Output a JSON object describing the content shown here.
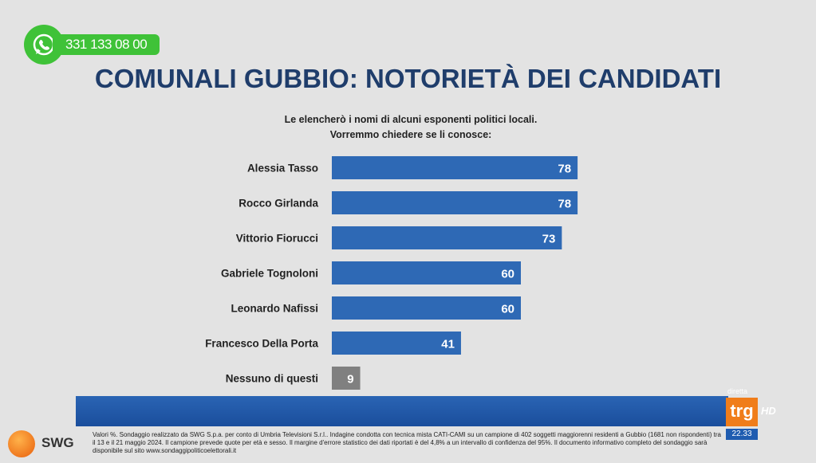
{
  "overlay": {
    "whatsapp_number": "331 133 08 00",
    "whatsapp_color": "#3fc238",
    "channel_live": "diretta",
    "channel_logo": "trg",
    "channel_hd": "HD",
    "clock": "22.33",
    "pollster_logo": "SWG"
  },
  "title": "COMUNALI GUBBIO: NOTORIETÀ DEI CANDIDATI",
  "question_line1": "Le elencherò i nomi di alcuni esponenti politici locali.",
  "question_line2": "Vorremmo chiedere se li conosce:",
  "footnote": "Valori %. Sondaggio realizzato da SWG S.p.a. per conto di Umbria Televisioni S.r.l.. Indagine condotta con tecnica mista CATI-CAMI su un campione di 402 soggetti maggiorenni residenti a Gubbio (1681 non rispondenti) tra il 13 e il 21 maggio 2024. Il campione prevede quote per età e sesso. Il margine d'errore statistico dei dati riportati è del 4,8% a un intervallo di confidenza del 95%. Il documento informativo completo del sondaggio sarà disponibile sul sito www.sondaggipoliticoelettorali.it",
  "chart_data": {
    "type": "bar",
    "orientation": "horizontal",
    "categories": [
      "Alessia Tasso",
      "Rocco Girlanda",
      "Vittorio Fiorucci",
      "Gabriele Tognoloni",
      "Leonardo Nafissi",
      "Francesco Della Porta",
      "Nessuno di questi"
    ],
    "values": [
      78,
      78,
      73,
      60,
      60,
      41,
      9
    ],
    "colors": [
      "#2e69b5",
      "#2e69b5",
      "#2e69b5",
      "#2e69b5",
      "#2e69b5",
      "#2e69b5",
      "#808080"
    ],
    "xlim": [
      0,
      100
    ],
    "grid": false,
    "data_labels": true
  }
}
